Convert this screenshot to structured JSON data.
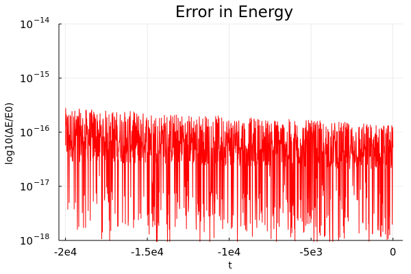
{
  "chart_data": {
    "type": "line",
    "title": "Error in Energy",
    "xlabel": "t",
    "ylabel": "log10(ΔE/E0)",
    "xlim": [
      -20400,
      600
    ],
    "ylim_exponents": [
      -18,
      -14
    ],
    "y_scale": "log",
    "grid": true,
    "legend": "none",
    "x_ticks": [
      {
        "value": -20000,
        "label": "-2e4"
      },
      {
        "value": -15000,
        "label": "-1.5e4"
      },
      {
        "value": -10000,
        "label": "-1e4"
      },
      {
        "value": -5000,
        "label": "-5e3"
      },
      {
        "value": 0,
        "label": "0"
      }
    ],
    "y_ticks": [
      {
        "value": 1e-18,
        "base": "10",
        "exp": "−18"
      },
      {
        "value": 1e-17,
        "base": "10",
        "exp": "−17"
      },
      {
        "value": 1e-16,
        "base": "10",
        "exp": "−16"
      },
      {
        "value": 1e-15,
        "base": "10",
        "exp": "−15"
      },
      {
        "value": 1e-14,
        "base": "10",
        "exp": "−14"
      }
    ],
    "series": [
      {
        "color": "#ff0000",
        "x_range": [
          -20000,
          0
        ],
        "y_band_log10": [
          -16.55,
          -15.55
        ],
        "y_band_log10_end": [
          -16.7,
          -15.85
        ],
        "noise_floor_log10": -18.0,
        "points": 1400
      }
    ]
  }
}
